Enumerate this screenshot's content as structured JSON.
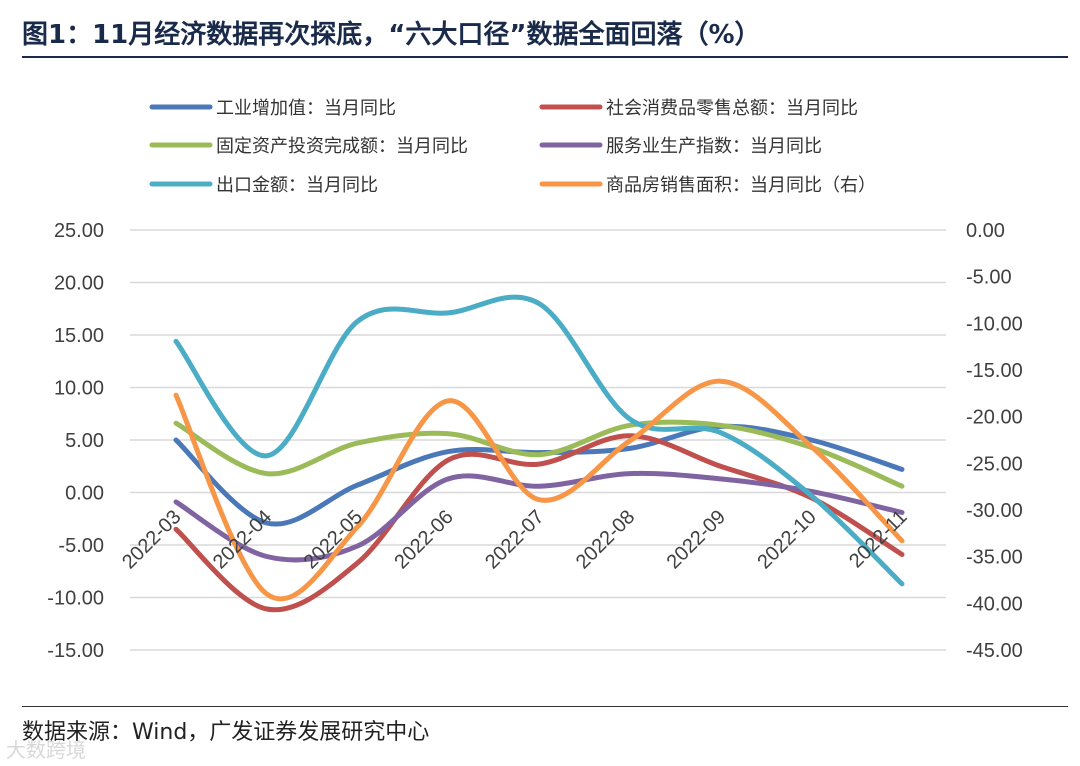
{
  "header": {
    "title": "图1：11月经济数据再次探底，“六大口径”数据全面回落（%）"
  },
  "footer": {
    "source": "数据来源：Wind，广发证券发展研究中心",
    "watermark": "大数跨境"
  },
  "chart_data": {
    "type": "line",
    "categories": [
      "2022-03",
      "2022-04",
      "2022-05",
      "2022-06",
      "2022-07",
      "2022-08",
      "2022-09",
      "2022-10",
      "2022-11"
    ],
    "y_left": {
      "min": -15,
      "max": 25,
      "step": 5,
      "ticks": [
        "25.00",
        "20.00",
        "15.00",
        "10.00",
        "5.00",
        "0.00",
        "-5.00",
        "-10.00",
        "-15.00"
      ]
    },
    "y_right": {
      "min": -45,
      "max": 0,
      "step": 5,
      "ticks": [
        "0.00",
        "-5.00",
        "-10.00",
        "-15.00",
        "-20.00",
        "-25.00",
        "-30.00",
        "-35.00",
        "-40.00",
        "-45.00"
      ]
    },
    "grid": true,
    "legend_position": "top",
    "series": [
      {
        "name": "工业增加值：当月同比",
        "axis": "left",
        "color": "#4a78b8",
        "values": [
          5.0,
          -2.9,
          0.7,
          3.9,
          3.8,
          4.2,
          6.3,
          5.0,
          2.2
        ]
      },
      {
        "name": "社会消费品零售总额：当月同比",
        "axis": "left",
        "color": "#c0504d",
        "values": [
          -3.5,
          -11.1,
          -6.7,
          3.1,
          2.7,
          5.4,
          2.5,
          -0.5,
          -5.9
        ]
      },
      {
        "name": "固定资产投资完成额：当月同比",
        "axis": "left",
        "color": "#9bbb59",
        "values": [
          6.6,
          1.8,
          4.7,
          5.6,
          3.6,
          6.4,
          6.4,
          4.3,
          0.6
        ]
      },
      {
        "name": "服务业生产指数：当月同比",
        "axis": "left",
        "color": "#8064a2",
        "values": [
          -0.9,
          -6.1,
          -5.1,
          1.3,
          0.6,
          1.8,
          1.3,
          0.1,
          -1.9
        ]
      },
      {
        "name": "出口金额：当月同比",
        "axis": "left",
        "color": "#4bacc6",
        "values": [
          14.4,
          3.5,
          16.3,
          17.1,
          18.0,
          7.0,
          5.7,
          -0.3,
          -8.7
        ]
      },
      {
        "name": "商品房销售面积：当月同比（右）",
        "axis": "right",
        "color": "#f79646",
        "values": [
          -17.7,
          -39.0,
          -31.8,
          -18.3,
          -28.9,
          -22.6,
          -16.2,
          -23.2,
          -33.3
        ]
      }
    ]
  }
}
